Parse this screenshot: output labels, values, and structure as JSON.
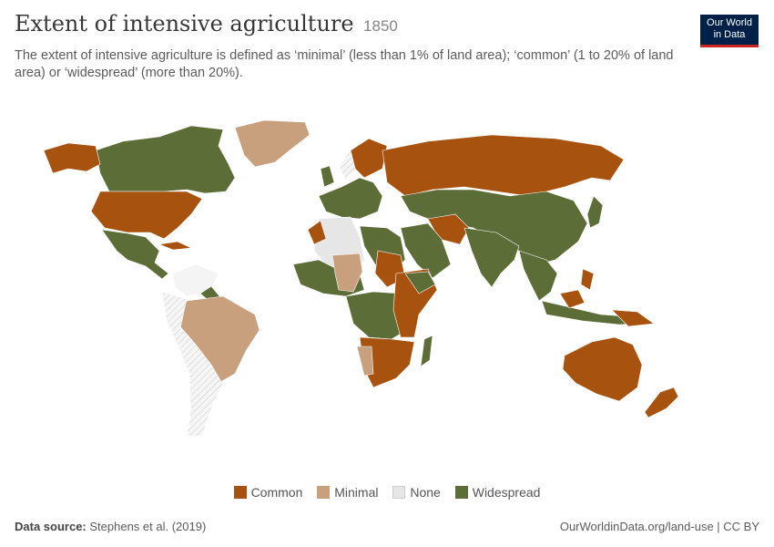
{
  "title": "Extent of intensive agriculture",
  "year": "1850",
  "subtitle": "The extent of intensive agriculture is defined as ‘minimal’ (less than 1% of land area); ‘common’ (1 to 20% of land area) or ‘widespread’ (more than 20%).",
  "logo": {
    "line1": "Our World",
    "line2": "in Data"
  },
  "legend": [
    {
      "label": "Common",
      "color": "#a8520f"
    },
    {
      "label": "Minimal",
      "color": "#c8a07e"
    },
    {
      "label": "None",
      "color": "#e6e6e6"
    },
    {
      "label": "Widespread",
      "color": "#5d6d37"
    }
  ],
  "footer": {
    "source_label": "Data source:",
    "source_text": "Stephens et al. (2019)",
    "url": "OurWorldinData.org/land-use | CC BY"
  },
  "colors": {
    "common": "#a8520f",
    "minimal": "#c8a07e",
    "none": "#e6e6e6",
    "widespread": "#5d6d37",
    "nodata": "#f4f4f4"
  }
}
